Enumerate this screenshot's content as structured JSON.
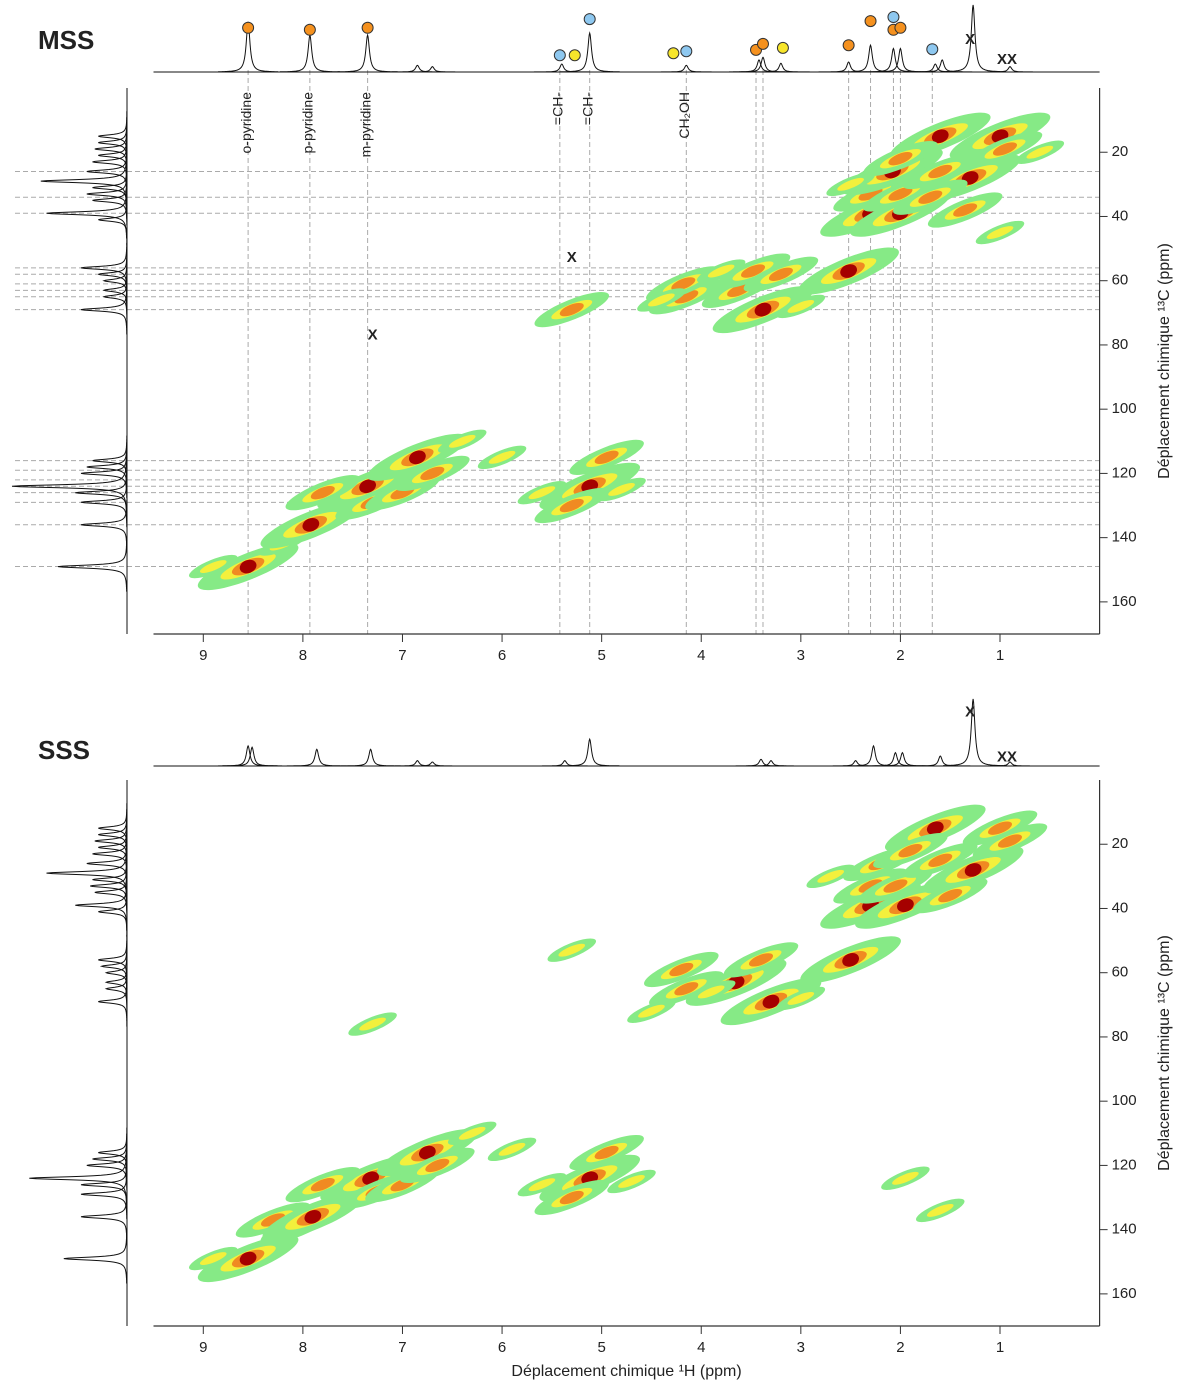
{
  "chart_data": [
    {
      "type": "contour",
      "title": "MSS",
      "title_color": "#1a1acc",
      "ylabel": "Déplacement chimique ¹³C (ppm)",
      "xlim": [
        9.5,
        0
      ],
      "xticks": [
        9,
        8,
        7,
        6,
        5,
        4,
        3,
        2,
        1
      ],
      "ylim": [
        0,
        170
      ],
      "yticks": [
        20,
        40,
        60,
        80,
        100,
        120,
        140,
        160
      ],
      "top_spectrum": {
        "ylim": [
          0,
          100
        ],
        "x": [
          8.55,
          7.93,
          7.35,
          6.85,
          6.7,
          5.4,
          5.12,
          4.15,
          3.42,
          3.38,
          3.2,
          2.52,
          2.3,
          2.07,
          2.0,
          1.65,
          1.58,
          1.27,
          0.9
        ],
        "values": [
          75,
          55,
          55,
          10,
          8,
          12,
          58,
          10,
          18,
          22,
          13,
          15,
          40,
          35,
          35,
          12,
          18,
          100,
          8
        ]
      },
      "side_spectrum": {
        "xlim": [
          0,
          100
        ],
        "y": [
          15,
          17,
          19,
          21,
          23,
          26,
          29,
          31,
          33,
          35,
          39,
          41,
          56,
          58,
          60,
          63,
          65,
          69,
          116,
          118,
          120,
          124,
          126,
          129,
          136,
          149
        ],
        "values": [
          25,
          25,
          28,
          25,
          30,
          35,
          75,
          30,
          35,
          30,
          70,
          25,
          40,
          25,
          20,
          20,
          20,
          40,
          30,
          35,
          40,
          100,
          45,
          40,
          40,
          60
        ]
      },
      "cross_peaks": {
        "x": [
          8.55,
          8.9,
          8.2,
          7.92,
          7.35,
          7.3,
          7.0,
          6.85,
          6.7,
          7.8,
          6.4,
          6.0,
          5.12,
          5.3,
          4.95,
          5.6,
          4.8,
          5.3,
          3.38,
          3.62,
          4.15,
          4.18,
          3.48,
          3.2,
          3.8,
          4.4,
          3.0,
          2.52,
          2.3,
          2.0,
          2.3,
          2.0,
          2.08,
          1.3,
          1.6,
          1.7,
          1.6,
          1.0,
          0.95,
          2.0,
          1.35,
          2.5,
          1.0,
          0.6
        ],
        "y": [
          149,
          149,
          142,
          136,
          124,
          129,
          126,
          115,
          120,
          126,
          110,
          115,
          124,
          130,
          115,
          126,
          125,
          69,
          69,
          63,
          65,
          61,
          57,
          58,
          57,
          66,
          68,
          57,
          39,
          39,
          33,
          33,
          26,
          28,
          26,
          34,
          15,
          15,
          19,
          22,
          38,
          30,
          45,
          20
        ],
        "intensity": [
          3,
          1,
          1,
          3,
          3,
          2,
          2,
          3,
          2,
          2,
          1,
          1,
          3,
          2,
          2,
          1,
          1,
          2,
          3,
          2,
          2,
          2,
          2,
          2,
          1,
          1,
          1,
          3,
          3,
          3,
          2,
          2,
          3,
          3,
          2,
          2,
          3,
          3,
          2,
          2,
          2,
          1,
          1,
          1
        ]
      },
      "markers": [
        {
          "color": "#f5911e",
          "x": [
            8.55,
            7.93,
            7.35,
            3.45,
            3.38,
            2.52,
            2.3,
            2.07,
            2.0
          ],
          "y": [
            66,
            63,
            66,
            33,
            42,
            40,
            76,
            63,
            66
          ]
        },
        {
          "color": "#8ec8f0",
          "x": [
            5.42,
            5.12,
            4.15,
            2.07,
            1.68
          ],
          "y": [
            25,
            79,
            31,
            82,
            34
          ]
        },
        {
          "color": "#f7e52a",
          "x": [
            5.27,
            4.28,
            3.18
          ],
          "y": [
            25,
            28,
            36
          ]
        }
      ],
      "x_marks": {
        "text": "X",
        "top_x": [
          1.3,
          0.98,
          0.88
        ],
        "top_y": [
          48,
          18,
          18
        ],
        "plot_x": [
          5.3,
          7.3
        ],
        "plot_y": [
          53,
          77
        ]
      },
      "guides": {
        "x": [
          8.55,
          7.93,
          7.35,
          5.42,
          5.12,
          4.15,
          3.45,
          3.38,
          2.52,
          2.3,
          2.07,
          2.0,
          1.68
        ],
        "y": [
          26,
          34,
          39,
          56,
          58,
          61,
          63,
          65,
          69,
          116,
          119,
          122,
          124,
          126,
          129,
          136,
          149
        ]
      },
      "annotations": [
        {
          "text": "o-pyridine",
          "x": 8.55,
          "color": "#e8501c"
        },
        {
          "text": "p-pyridine",
          "x": 7.93,
          "color": "#e8501c"
        },
        {
          "text": "m-pyridine",
          "x": 7.35,
          "color": "#e8501c"
        },
        {
          "text": "=CH-",
          "x": 5.42,
          "color": "#2233cc"
        },
        {
          "text": "=CH-",
          "x": 5.12,
          "color": "#2233cc"
        },
        {
          "text": "CH₂OH",
          "x": 4.15,
          "color": "#2233cc"
        }
      ]
    },
    {
      "type": "contour",
      "title": "SSS",
      "title_color": "#ff6a1a",
      "xlabel": "Déplacement chimique ¹H (ppm)",
      "ylabel": "Déplacement chimique ¹³C (ppm)",
      "xlim": [
        9.5,
        0
      ],
      "xticks": [
        9,
        8,
        7,
        6,
        5,
        4,
        3,
        2,
        1
      ],
      "ylim": [
        0,
        170
      ],
      "yticks": [
        20,
        40,
        60,
        80,
        100,
        120,
        140,
        160
      ],
      "top_spectrum": {
        "ylim": [
          0,
          100
        ],
        "x": [
          8.55,
          8.51,
          7.86,
          7.32,
          6.85,
          6.7,
          5.37,
          5.12,
          3.4,
          3.3,
          2.45,
          2.27,
          2.05,
          1.98,
          1.6,
          1.27,
          0.9
        ],
        "values": [
          30,
          28,
          25,
          25,
          8,
          6,
          8,
          40,
          10,
          8,
          8,
          30,
          20,
          20,
          15,
          100,
          6
        ]
      },
      "side_spectrum": {
        "xlim": [
          0,
          100
        ],
        "y": [
          15,
          17,
          19,
          21,
          23,
          26,
          29,
          31,
          33,
          35,
          39,
          41,
          56,
          58,
          60,
          63,
          65,
          69,
          116,
          118,
          120,
          124,
          126,
          129,
          136,
          149
        ],
        "values": [
          25,
          25,
          28,
          25,
          30,
          35,
          70,
          30,
          32,
          28,
          45,
          25,
          25,
          22,
          18,
          18,
          18,
          25,
          25,
          30,
          35,
          85,
          40,
          40,
          40,
          55
        ]
      },
      "cross_peaks": {
        "x": [
          8.55,
          8.9,
          8.3,
          8.05,
          7.9,
          7.32,
          7.25,
          7.0,
          6.75,
          6.65,
          7.8,
          6.3,
          5.9,
          5.12,
          5.3,
          4.95,
          5.6,
          4.7,
          7.3,
          5.3,
          3.3,
          3.65,
          4.15,
          4.2,
          3.4,
          3.9,
          4.5,
          3.0,
          2.5,
          2.3,
          1.95,
          2.3,
          2.05,
          2.2,
          1.27,
          1.6,
          1.65,
          1.0,
          0.9,
          1.9,
          1.5,
          2.7,
          1.95,
          1.6
        ],
        "y": [
          149,
          149,
          137,
          139,
          136,
          124,
          128,
          126,
          116,
          120,
          126,
          110,
          115,
          124,
          130,
          116,
          126,
          125,
          76,
          53,
          69,
          63,
          65,
          59,
          56,
          66,
          72,
          68,
          56,
          39,
          39,
          33,
          33,
          26,
          28,
          25,
          15,
          15,
          19,
          22,
          36,
          30,
          124,
          134
        ],
        "intensity": [
          3,
          1,
          2,
          2,
          3,
          3,
          2,
          2,
          3,
          2,
          2,
          1,
          1,
          3,
          2,
          2,
          1,
          1,
          1,
          1,
          3,
          3,
          2,
          2,
          2,
          1,
          1,
          1,
          3,
          3,
          3,
          2,
          2,
          2,
          3,
          2,
          3,
          2,
          2,
          2,
          2,
          1,
          1,
          1
        ]
      },
      "x_marks": {
        "text": "X",
        "top_x": [
          1.3,
          0.98,
          0.88
        ],
        "top_y": [
          80,
          13,
          13
        ],
        "plot_x": [],
        "plot_y": []
      }
    }
  ]
}
